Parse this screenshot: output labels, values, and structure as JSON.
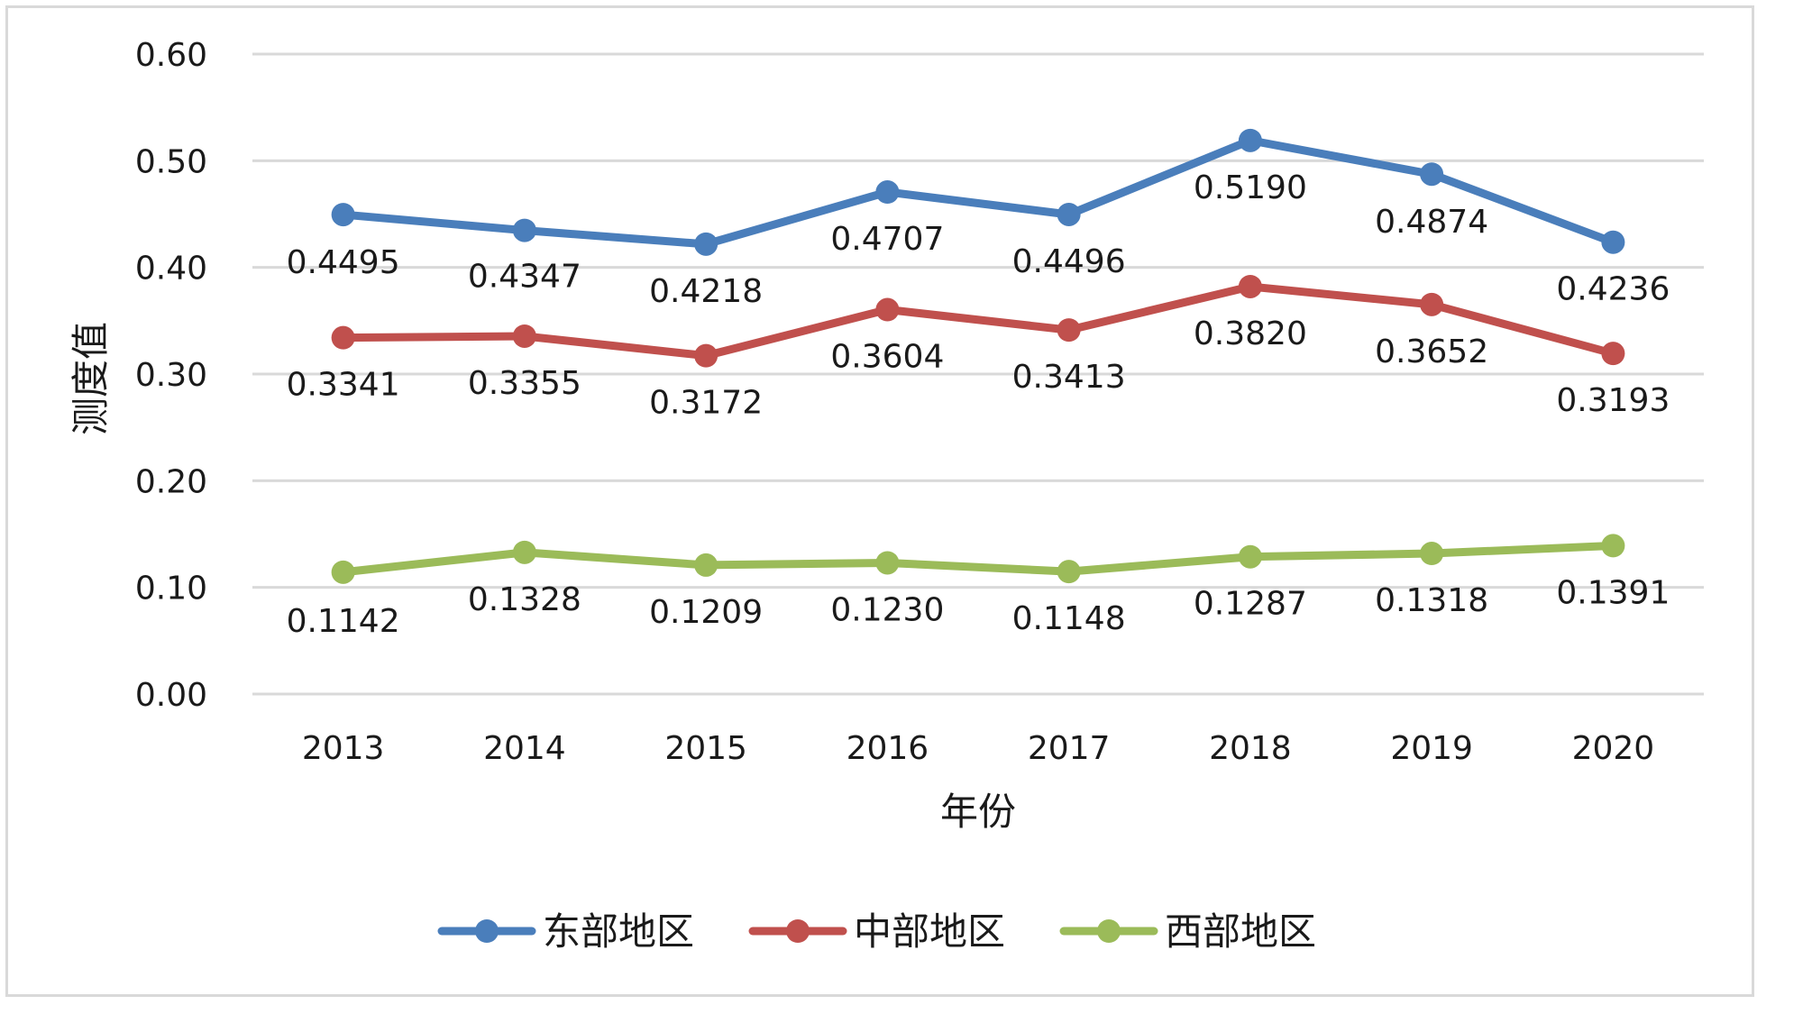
{
  "chart_data": {
    "type": "line",
    "title": "",
    "xlabel": "年份",
    "ylabel": "测度值",
    "categories": [
      "2013",
      "2014",
      "2015",
      "2016",
      "2017",
      "2018",
      "2019",
      "2020"
    ],
    "ylim": [
      0,
      0.6
    ],
    "yticks": [
      "0.00",
      "0.10",
      "0.20",
      "0.30",
      "0.40",
      "0.50",
      "0.60"
    ],
    "grid": true,
    "legend_position": "bottom",
    "series": [
      {
        "name": "东部地区",
        "color": "#4a7ebb",
        "values": [
          0.4495,
          0.4347,
          0.4218,
          0.4707,
          0.4496,
          0.519,
          0.4874,
          0.4236
        ],
        "labels": [
          "0.4495",
          "0.4347",
          "0.4218",
          "0.4707",
          "0.4496",
          "0.5190",
          "0.4874",
          "0.4236"
        ]
      },
      {
        "name": "中部地区",
        "color": "#c0504d",
        "values": [
          0.3341,
          0.3355,
          0.3172,
          0.3604,
          0.3413,
          0.382,
          0.3652,
          0.3193
        ],
        "labels": [
          "0.3341",
          "0.3355",
          "0.3172",
          "0.3604",
          "0.3413",
          "0.3820",
          "0.3652",
          "0.3193"
        ]
      },
      {
        "name": "西部地区",
        "color": "#9bbb59",
        "values": [
          0.1142,
          0.1328,
          0.1209,
          0.123,
          0.1148,
          0.1287,
          0.1318,
          0.1391
        ],
        "labels": [
          "0.1142",
          "0.1328",
          "0.1209",
          "0.1230",
          "0.1148",
          "0.1287",
          "0.1318",
          "0.1391"
        ]
      }
    ]
  }
}
